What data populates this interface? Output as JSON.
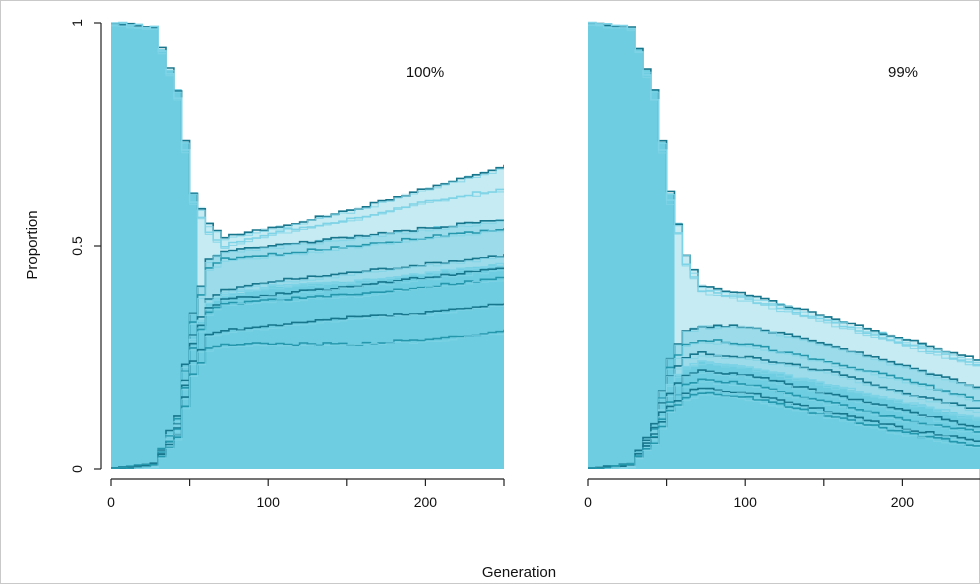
{
  "figure": {
    "ylabel": "Proportion",
    "xlabel": "Generation"
  },
  "chart_data": [
    {
      "type": "line",
      "panel_label": "100%",
      "xlim": [
        0,
        250
      ],
      "ylim": [
        0,
        1
      ],
      "x_ticks": [
        0,
        100,
        200
      ],
      "y_ticks": [
        0,
        0.5,
        1
      ],
      "y_tick_labels": [
        "0",
        "0.5",
        "1"
      ],
      "grid": false,
      "colors": {
        "fill": "#6ecde0",
        "dark": "#17758c",
        "mid": "#2597ad",
        "light": "#7fd3e6",
        "band": "#d6f0f6"
      },
      "series": [
        {
          "x": [
            0,
            25,
            40,
            50,
            60,
            70,
            100,
            150,
            200,
            250
          ],
          "values": [
            1.0,
            0.99,
            0.85,
            0.62,
            0.55,
            0.52,
            0.54,
            0.58,
            0.63,
            0.68
          ]
        },
        {
          "x": [
            0,
            25,
            40,
            50,
            60,
            70,
            100,
            150,
            200,
            250
          ],
          "values": [
            1.0,
            0.99,
            0.83,
            0.6,
            0.53,
            0.5,
            0.53,
            0.56,
            0.6,
            0.63
          ]
        },
        {
          "x": [
            0,
            25,
            40,
            50,
            60,
            70,
            100,
            150,
            200,
            250
          ],
          "values": [
            0.0,
            0.01,
            0.12,
            0.35,
            0.47,
            0.49,
            0.5,
            0.52,
            0.54,
            0.56
          ]
        },
        {
          "x": [
            0,
            25,
            40,
            50,
            60,
            70,
            100,
            150,
            200,
            250
          ],
          "values": [
            0.0,
            0.01,
            0.11,
            0.33,
            0.45,
            0.47,
            0.48,
            0.5,
            0.52,
            0.54
          ]
        },
        {
          "x": [
            0,
            25,
            40,
            50,
            60,
            70,
            100,
            150,
            200,
            250
          ],
          "values": [
            0.0,
            0.01,
            0.1,
            0.3,
            0.38,
            0.4,
            0.42,
            0.44,
            0.46,
            0.48
          ]
        },
        {
          "x": [
            0,
            25,
            40,
            50,
            60,
            70,
            100,
            150,
            200,
            250
          ],
          "values": [
            0.0,
            0.01,
            0.1,
            0.29,
            0.37,
            0.39,
            0.41,
            0.42,
            0.44,
            0.46
          ]
        },
        {
          "x": [
            0,
            25,
            40,
            50,
            60,
            70,
            100,
            150,
            200,
            250
          ],
          "values": [
            0.0,
            0.01,
            0.09,
            0.28,
            0.36,
            0.38,
            0.39,
            0.41,
            0.43,
            0.45
          ]
        },
        {
          "x": [
            0,
            25,
            40,
            50,
            60,
            70,
            100,
            150,
            200,
            250
          ],
          "values": [
            0.0,
            0.01,
            0.09,
            0.27,
            0.35,
            0.37,
            0.38,
            0.39,
            0.41,
            0.43
          ]
        },
        {
          "x": [
            0,
            25,
            40,
            50,
            60,
            70,
            100,
            150,
            200,
            250
          ],
          "values": [
            0.0,
            0.01,
            0.08,
            0.24,
            0.3,
            0.31,
            0.32,
            0.34,
            0.35,
            0.37
          ]
        },
        {
          "x": [
            0,
            25,
            40,
            50,
            60,
            70,
            100,
            150,
            200,
            250
          ],
          "values": [
            0.0,
            0.01,
            0.07,
            0.21,
            0.27,
            0.28,
            0.28,
            0.28,
            0.29,
            0.31
          ]
        }
      ]
    },
    {
      "type": "line",
      "panel_label": "99%",
      "xlim": [
        0,
        250
      ],
      "ylim": [
        0,
        1
      ],
      "x_ticks": [
        0,
        100,
        200
      ],
      "y_ticks": [
        0,
        0.5,
        1
      ],
      "y_tick_labels": [
        "0",
        "0.5",
        "1"
      ],
      "grid": false,
      "colors": {
        "fill": "#6ecde0",
        "dark": "#17758c",
        "mid": "#2597ad",
        "light": "#7fd3e6",
        "band": "#d6f0f6"
      },
      "series": [
        {
          "x": [
            0,
            25,
            40,
            50,
            60,
            70,
            100,
            150,
            200,
            250
          ],
          "values": [
            1.0,
            0.99,
            0.85,
            0.62,
            0.48,
            0.41,
            0.39,
            0.34,
            0.29,
            0.24
          ]
        },
        {
          "x": [
            0,
            25,
            40,
            50,
            60,
            70,
            100,
            150,
            200,
            250
          ],
          "values": [
            1.0,
            0.99,
            0.83,
            0.6,
            0.46,
            0.4,
            0.38,
            0.33,
            0.28,
            0.23
          ]
        },
        {
          "x": [
            0,
            25,
            40,
            50,
            60,
            70,
            100,
            150,
            200,
            250
          ],
          "values": [
            0.0,
            0.01,
            0.1,
            0.25,
            0.31,
            0.32,
            0.32,
            0.28,
            0.23,
            0.18
          ]
        },
        {
          "x": [
            0,
            25,
            40,
            50,
            60,
            70,
            100,
            150,
            200,
            250
          ],
          "values": [
            0.0,
            0.01,
            0.09,
            0.23,
            0.28,
            0.29,
            0.28,
            0.24,
            0.2,
            0.15
          ]
        },
        {
          "x": [
            0,
            25,
            40,
            50,
            60,
            70,
            100,
            150,
            200,
            250
          ],
          "values": [
            0.0,
            0.01,
            0.09,
            0.21,
            0.25,
            0.26,
            0.25,
            0.22,
            0.17,
            0.13
          ]
        },
        {
          "x": [
            0,
            25,
            40,
            50,
            60,
            70,
            100,
            150,
            200,
            250
          ],
          "values": [
            0.0,
            0.01,
            0.08,
            0.19,
            0.23,
            0.24,
            0.23,
            0.19,
            0.15,
            0.11
          ]
        },
        {
          "x": [
            0,
            25,
            40,
            50,
            60,
            70,
            100,
            150,
            200,
            250
          ],
          "values": [
            0.0,
            0.01,
            0.08,
            0.17,
            0.21,
            0.22,
            0.21,
            0.17,
            0.13,
            0.09
          ]
        },
        {
          "x": [
            0,
            25,
            40,
            50,
            60,
            70,
            100,
            150,
            200,
            250
          ],
          "values": [
            0.0,
            0.01,
            0.07,
            0.15,
            0.19,
            0.2,
            0.19,
            0.15,
            0.11,
            0.08
          ]
        },
        {
          "x": [
            0,
            25,
            40,
            50,
            60,
            70,
            100,
            150,
            200,
            250
          ],
          "values": [
            0.0,
            0.01,
            0.07,
            0.14,
            0.17,
            0.18,
            0.17,
            0.13,
            0.09,
            0.06
          ]
        },
        {
          "x": [
            0,
            25,
            40,
            50,
            60,
            70,
            100,
            150,
            200,
            250
          ],
          "values": [
            0.0,
            0.01,
            0.06,
            0.13,
            0.16,
            0.17,
            0.16,
            0.12,
            0.08,
            0.05
          ]
        }
      ]
    }
  ]
}
